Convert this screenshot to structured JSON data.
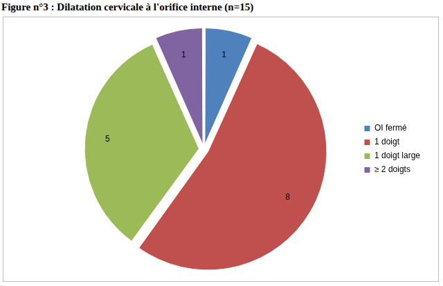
{
  "chart_data": {
    "type": "pie",
    "title": "Figure n°3 : Dilatation cervicale à l'orifice interne (n=15)",
    "categories": [
      "OI fermé",
      "1 doigt",
      "1 doigt large",
      "≥ 2 doigts"
    ],
    "values": [
      1,
      8,
      5,
      1
    ],
    "colors": [
      "#4f81bd",
      "#c0504d",
      "#9bbb59",
      "#8064a2"
    ],
    "data_labels": true,
    "legend": "right"
  }
}
